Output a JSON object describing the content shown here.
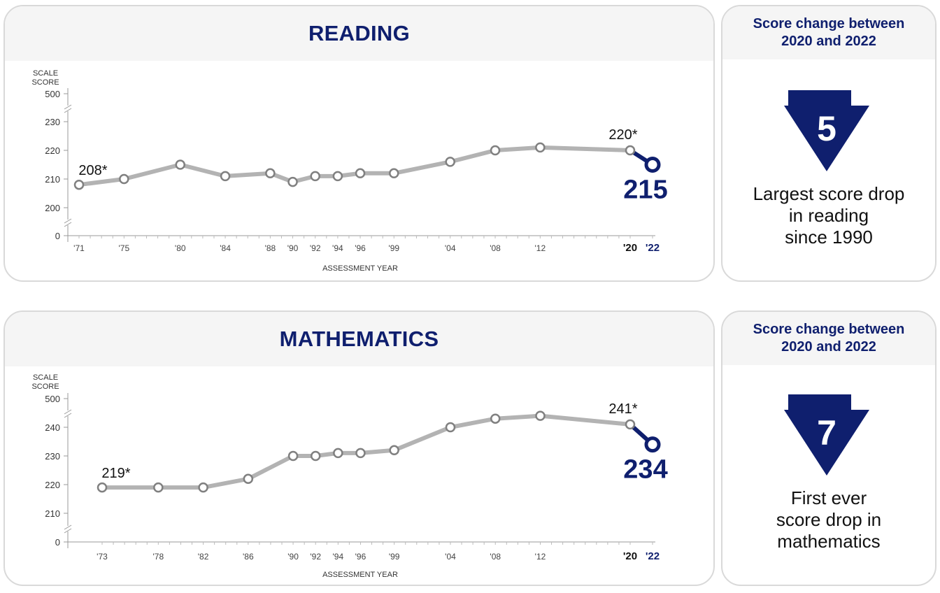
{
  "colors": {
    "navy": "#0f1f6e",
    "line_gray": "#b3b3b3",
    "point_stroke": "#808080"
  },
  "reading": {
    "title": "READING",
    "side_title_1": "Score change between",
    "side_title_2": "2020 and 2022",
    "change_value": "5",
    "desc_1": "Largest score drop",
    "desc_2": "in reading",
    "desc_3": "since 1990"
  },
  "math": {
    "title": "MATHEMATICS",
    "side_title_1": "Score change between",
    "side_title_2": "2020 and 2022",
    "change_value": "7",
    "desc_1": "First ever",
    "desc_2": "score drop in",
    "desc_3": "mathematics"
  },
  "chart_data": [
    {
      "type": "line",
      "title": "READING",
      "ylabel": "SCALE SCORE",
      "xlabel": "ASSESSMENT YEAR",
      "x": [
        1971,
        1975,
        1980,
        1984,
        1988,
        1990,
        1992,
        1994,
        1996,
        1999,
        2004,
        2008,
        2012,
        2020,
        2022
      ],
      "xtick_labels": [
        "'71",
        "'75",
        "'80",
        "'84",
        "'88",
        "'90",
        "'92",
        "'94",
        "'96",
        "'99",
        "'04",
        "'08",
        "'12",
        "'20",
        "'22"
      ],
      "series": [
        {
          "values": [
            208,
            210,
            215,
            211,
            212,
            209,
            211,
            211,
            212,
            212,
            216,
            220,
            221,
            220,
            215
          ]
        }
      ],
      "yticks": [
        0,
        200,
        210,
        220,
        230,
        500
      ],
      "ylim": [
        200,
        230
      ],
      "axis_break": true,
      "annotations": [
        {
          "x": 1971,
          "text": "208*"
        },
        {
          "x": 2020,
          "text": "220*"
        },
        {
          "x": 2022,
          "text": "215",
          "highlight": true
        }
      ]
    },
    {
      "type": "line",
      "title": "MATHEMATICS",
      "ylabel": "SCALE SCORE",
      "xlabel": "ASSESSMENT YEAR",
      "x": [
        1973,
        1978,
        1982,
        1986,
        1990,
        1992,
        1994,
        1996,
        1999,
        2004,
        2008,
        2012,
        2020,
        2022
      ],
      "xtick_labels": [
        "'73",
        "'78",
        "'82",
        "'86",
        "'90",
        "'92",
        "'94",
        "'96",
        "'99",
        "'04",
        "'08",
        "'12",
        "'20",
        "'22"
      ],
      "series": [
        {
          "values": [
            219,
            219,
            219,
            222,
            230,
            230,
            231,
            231,
            232,
            240,
            243,
            244,
            241,
            234
          ]
        }
      ],
      "yticks": [
        0,
        210,
        220,
        230,
        240,
        500
      ],
      "ylim": [
        210,
        240
      ],
      "axis_break": true,
      "annotations": [
        {
          "x": 1973,
          "text": "219*"
        },
        {
          "x": 2020,
          "text": "241*"
        },
        {
          "x": 2022,
          "text": "234",
          "highlight": true
        }
      ]
    }
  ]
}
